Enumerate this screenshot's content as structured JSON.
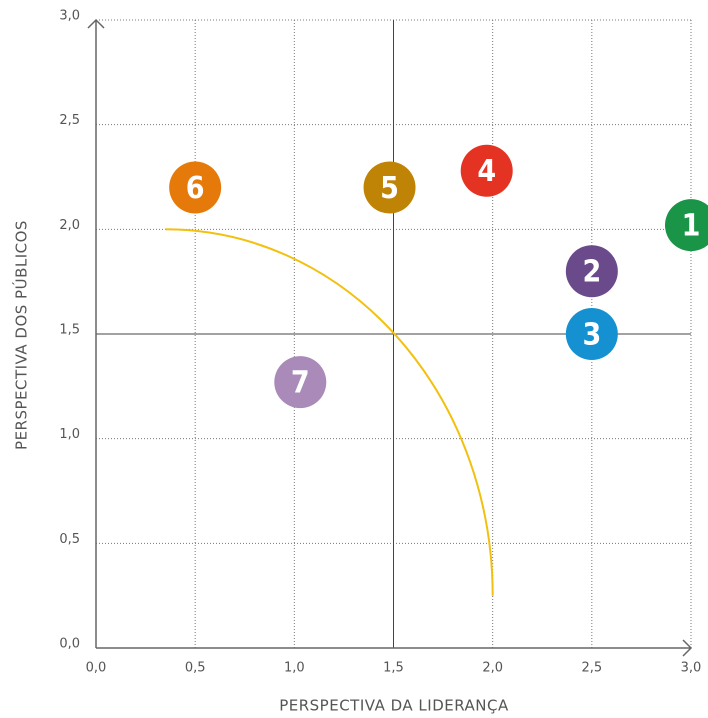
{
  "chart_data": {
    "type": "scatter",
    "x_label": "PERSPECTIVA DA LIDERANÇA",
    "y_label": "PERSPECTIVA DOS PÚBLICOS",
    "xlim": [
      0,
      3
    ],
    "ylim": [
      0,
      3
    ],
    "xticks": [
      {
        "value": 0,
        "label": "0,0"
      },
      {
        "value": 0.5,
        "label": "0,5"
      },
      {
        "value": 1,
        "label": "1,0"
      },
      {
        "value": 1.5,
        "label": "1,5"
      },
      {
        "value": 2,
        "label": "2,0"
      },
      {
        "value": 2.5,
        "label": "2,5"
      },
      {
        "value": 3,
        "label": "3,0"
      }
    ],
    "yticks": [
      {
        "value": 0,
        "label": "0,0"
      },
      {
        "value": 0.5,
        "label": "0,5"
      },
      {
        "value": 1,
        "label": "1,0"
      },
      {
        "value": 1.5,
        "label": "1,5"
      },
      {
        "value": 2,
        "label": "2,0"
      },
      {
        "value": 2.5,
        "label": "2,5"
      },
      {
        "value": 3,
        "label": "3,0"
      }
    ],
    "grid": true,
    "labels": [
      "1",
      "2",
      "3",
      "4",
      "5",
      "6",
      "7"
    ],
    "x": [
      3.0,
      2.5,
      2.5,
      1.97,
      1.48,
      0.5,
      1.03
    ],
    "values": [
      2.02,
      1.8,
      1.5,
      2.28,
      2.2,
      2.2,
      1.27
    ],
    "colors": [
      "#1a9446",
      "#6b4a8c",
      "#1591d2",
      "#e53323",
      "#bf8306",
      "#e57a0b",
      "#a98ab8"
    ]
  }
}
